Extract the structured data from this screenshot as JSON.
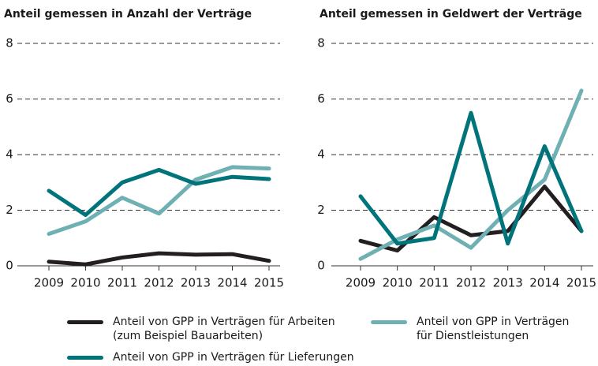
{
  "chart_data": [
    {
      "type": "line",
      "title": "Anteil gemessen in Anzahl der Verträge",
      "categories": [
        "2009",
        "2010",
        "2011",
        "2012",
        "2013",
        "2014",
        "2015"
      ],
      "ylim": [
        0,
        8
      ],
      "yticks": [
        0,
        2,
        4,
        6,
        8
      ],
      "grid": true,
      "series": [
        {
          "name": "Anteil von GPP in Verträgen für Arbeiten\n(zum Beispiel Bauarbeiten)",
          "color": "#231f20",
          "values": [
            0.15,
            0.05,
            0.3,
            0.45,
            0.4,
            0.42,
            0.18
          ]
        },
        {
          "name": "Anteil von GPP in Verträgen\nfür Dienstleistungen",
          "color": "#6fb0b3",
          "values": [
            1.15,
            1.6,
            2.45,
            1.88,
            3.1,
            3.55,
            3.5
          ]
        },
        {
          "name": "Anteil von GPP in Verträgen für Lieferungen",
          "color": "#00747a",
          "values": [
            2.7,
            1.83,
            3.0,
            3.45,
            2.95,
            3.2,
            3.12
          ]
        }
      ]
    },
    {
      "type": "line",
      "title": "Anteil gemessen in Geldwert der Verträge",
      "categories": [
        "2009",
        "2010",
        "2011",
        "2012",
        "2013",
        "2014",
        "2015"
      ],
      "ylim": [
        0,
        8
      ],
      "yticks": [
        0,
        2,
        4,
        6,
        8
      ],
      "grid": true,
      "series": [
        {
          "color": "#231f20",
          "values": [
            0.9,
            0.55,
            1.75,
            1.1,
            1.25,
            2.85,
            1.25
          ]
        },
        {
          "color": "#6fb0b3",
          "values": [
            0.25,
            0.95,
            1.45,
            0.65,
            2.0,
            3.1,
            6.3
          ]
        },
        {
          "color": "#00747a",
          "values": [
            2.5,
            0.8,
            1.0,
            5.5,
            0.8,
            4.3,
            1.25
          ]
        }
      ]
    }
  ]
}
